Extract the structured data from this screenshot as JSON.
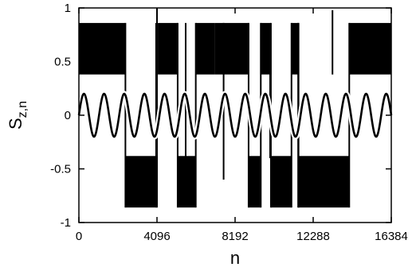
{
  "chart_data": {
    "type": "line",
    "xlabel": "n",
    "ylabel_main": "S",
    "ylabel_sub": "z,n",
    "xlim": [
      0,
      16384
    ],
    "ylim": [
      -1,
      1
    ],
    "x_ticks": [
      0,
      4096,
      8192,
      12288,
      16384
    ],
    "x_tick_labels": [
      "0",
      "4096",
      "8192",
      "12288",
      "16384"
    ],
    "y_ticks": [
      -1,
      -0.5,
      0,
      0.5,
      1
    ],
    "y_tick_labels": [
      "-1",
      "-0.5",
      "0",
      "0.5",
      "1"
    ],
    "grid": false,
    "series": [
      {
        "style": "switching-band",
        "upper_band": [
          0.38,
          0.86
        ],
        "lower_band": [
          -0.86,
          -0.38
        ],
        "segments": [
          {
            "x": [
              0,
              2440
            ],
            "band": "upper"
          },
          {
            "x": [
              2440,
              4050
            ],
            "band": "lower"
          },
          {
            "x": [
              4050,
              4140
            ],
            "band": "upper"
          },
          {
            "x": [
              4140,
              5180
            ],
            "band": "upper"
          },
          {
            "x": [
              5180,
              6130
            ],
            "band": "lower"
          },
          {
            "x": [
              6130,
              7110
            ],
            "band": "upper"
          },
          {
            "x": [
              7110,
              7620
            ],
            "band": "upper"
          },
          {
            "x": [
              7620,
              8900
            ],
            "band": "upper"
          },
          {
            "x": [
              8900,
              9540
            ],
            "band": "lower"
          },
          {
            "x": [
              9540,
              10070
            ],
            "band": "upper"
          },
          {
            "x": [
              10070,
              11150
            ],
            "band": "lower"
          },
          {
            "x": [
              11150,
              11500
            ],
            "band": "upper"
          },
          {
            "x": [
              11500,
              14180
            ],
            "band": "lower"
          },
          {
            "x": [
              14180,
              16384
            ],
            "band": "upper"
          }
        ],
        "spikes": [
          {
            "x": 4096,
            "y": [
              -0.86,
              1.0
            ]
          },
          {
            "x": 5600,
            "y": [
              -0.55,
              0.86
            ]
          },
          {
            "x": 7590,
            "y": [
              -0.6,
              0.86
            ]
          },
          {
            "x": 10030,
            "y": [
              -0.4,
              0.78
            ]
          },
          {
            "x": 11520,
            "y": [
              -0.86,
              0.86
            ]
          },
          {
            "x": 13300,
            "y": [
              0.38,
              0.98
            ]
          }
        ]
      },
      {
        "style": "sinusoid",
        "amplitude": 0.2,
        "offset": 0,
        "cycles": 15.5,
        "phase": 0,
        "x_range": [
          0,
          16384
        ]
      }
    ]
  }
}
